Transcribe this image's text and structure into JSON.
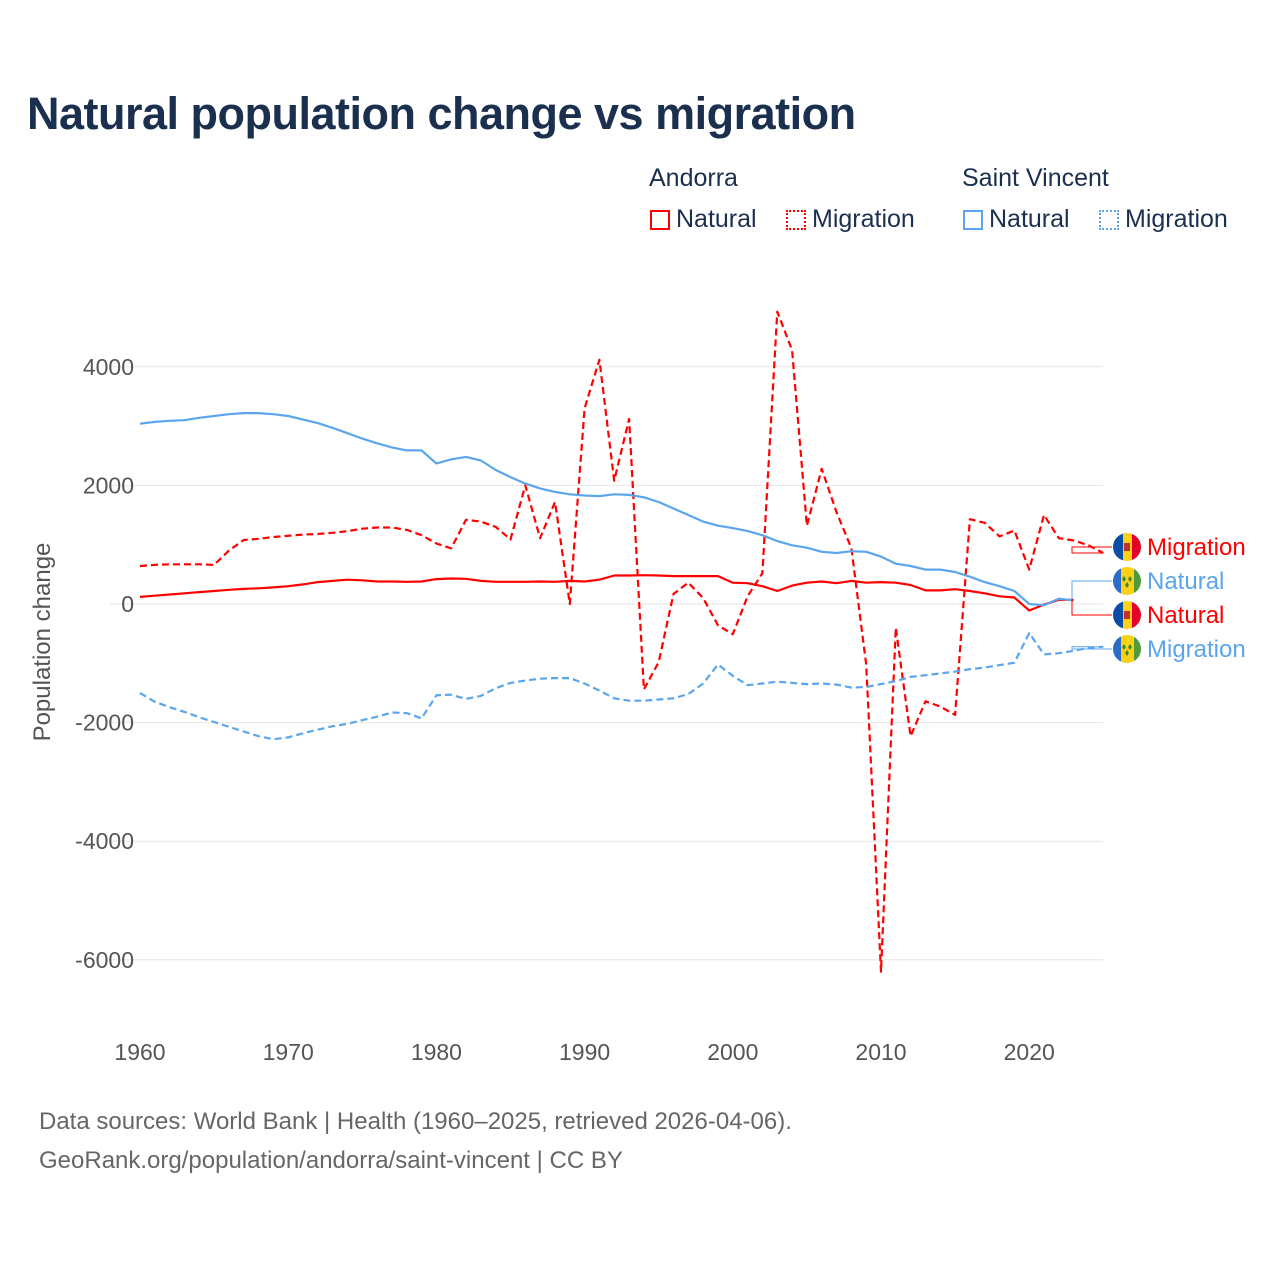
{
  "title": "Natural population change vs migration",
  "legend": {
    "groups": [
      {
        "name": "Andorra",
        "color": "#ff0000",
        "items": [
          "Natural",
          "Migration"
        ]
      },
      {
        "name": "Saint Vincent",
        "color": "#5aa5ec",
        "items": [
          "Natural",
          "Migration"
        ]
      }
    ]
  },
  "footer": {
    "line1": "Data sources: World Bank | Health (1960–2025, retrieved 2026-04-06).",
    "line2": "GeoRank.org/population/andorra/saint-vincent | CC BY"
  },
  "chart_data": {
    "type": "line",
    "title": "Natural population change vs migration",
    "xlabel": "",
    "ylabel": "Population change",
    "xlim": [
      1960,
      2025
    ],
    "ylim": [
      -7000,
      5000
    ],
    "xticks": [
      1960,
      1970,
      1980,
      1990,
      2000,
      2010,
      2020
    ],
    "yticks": [
      -6000,
      -4000,
      -2000,
      0,
      2000,
      4000
    ],
    "grid": true,
    "legend_placement": "top-right",
    "x_start": 1960,
    "series": [
      {
        "name": "Andorra Natural",
        "label": "Natural",
        "country": "Andorra",
        "color": "#ff0000",
        "dash": false,
        "flag": "andorra",
        "values": [
          120,
          140,
          160,
          180,
          200,
          220,
          240,
          255,
          265,
          280,
          300,
          330,
          370,
          390,
          410,
          400,
          380,
          380,
          375,
          380,
          420,
          430,
          425,
          390,
          375,
          375,
          375,
          380,
          375,
          390,
          380,
          410,
          480,
          480,
          485,
          480,
          470,
          470,
          470,
          470,
          360,
          350,
          300,
          220,
          310,
          360,
          380,
          350,
          390,
          360,
          370,
          360,
          320,
          230,
          230,
          250,
          220,
          180,
          130,
          110,
          -110,
          -10,
          70,
          70,
          null,
          null
        ]
      },
      {
        "name": "Andorra Migration",
        "label": "Migration",
        "country": "Andorra",
        "color": "#ff0000",
        "dash": true,
        "flag": "andorra",
        "values": [
          640,
          660,
          670,
          670,
          670,
          660,
          900,
          1080,
          1100,
          1130,
          1150,
          1170,
          1180,
          1200,
          1230,
          1270,
          1290,
          1290,
          1250,
          1160,
          1020,
          940,
          1420,
          1390,
          1300,
          1090,
          2000,
          1110,
          1720,
          0,
          3300,
          4120,
          2080,
          3120,
          -1440,
          -980,
          170,
          360,
          100,
          -360,
          -510,
          130,
          520,
          4930,
          4280,
          1320,
          2280,
          1550,
          940,
          -1020,
          -6200,
          -400,
          -2230,
          -1640,
          -1730,
          -1870,
          1430,
          1370,
          1140,
          1240,
          580,
          1500,
          1110,
          1070,
          990,
          860
        ]
      },
      {
        "name": "Saint Vincent Natural",
        "label": "Natural",
        "country": "Saint Vincent",
        "color": "#5aa5ec",
        "dash": false,
        "flag": "svg",
        "values": [
          3040,
          3070,
          3090,
          3100,
          3140,
          3170,
          3200,
          3220,
          3220,
          3200,
          3170,
          3110,
          3050,
          2970,
          2880,
          2790,
          2710,
          2640,
          2590,
          2590,
          2370,
          2440,
          2480,
          2420,
          2260,
          2140,
          2030,
          1950,
          1890,
          1850,
          1830,
          1820,
          1850,
          1840,
          1800,
          1720,
          1610,
          1500,
          1390,
          1320,
          1280,
          1230,
          1160,
          1060,
          990,
          950,
          880,
          860,
          890,
          880,
          800,
          680,
          640,
          580,
          580,
          540,
          460,
          370,
          300,
          220,
          0,
          -20,
          90,
          60,
          null,
          null
        ]
      },
      {
        "name": "Saint Vincent Migration",
        "label": "Migration",
        "country": "Saint Vincent",
        "color": "#5aa5ec",
        "dash": true,
        "flag": "svg",
        "values": [
          -1500,
          -1650,
          -1740,
          -1820,
          -1910,
          -1990,
          -2070,
          -2150,
          -2230,
          -2280,
          -2250,
          -2180,
          -2120,
          -2060,
          -2020,
          -1960,
          -1900,
          -1830,
          -1840,
          -1930,
          -1540,
          -1530,
          -1600,
          -1550,
          -1420,
          -1330,
          -1290,
          -1260,
          -1250,
          -1250,
          -1340,
          -1460,
          -1590,
          -1630,
          -1630,
          -1610,
          -1590,
          -1520,
          -1340,
          -1020,
          -1210,
          -1370,
          -1340,
          -1310,
          -1330,
          -1350,
          -1340,
          -1360,
          -1410,
          -1400,
          -1350,
          -1300,
          -1230,
          -1200,
          -1170,
          -1140,
          -1100,
          -1070,
          -1030,
          -990,
          -490,
          -850,
          -830,
          -790,
          -740,
          -720
        ]
      }
    ],
    "end_labels_order": [
      1,
      2,
      0,
      3
    ]
  }
}
